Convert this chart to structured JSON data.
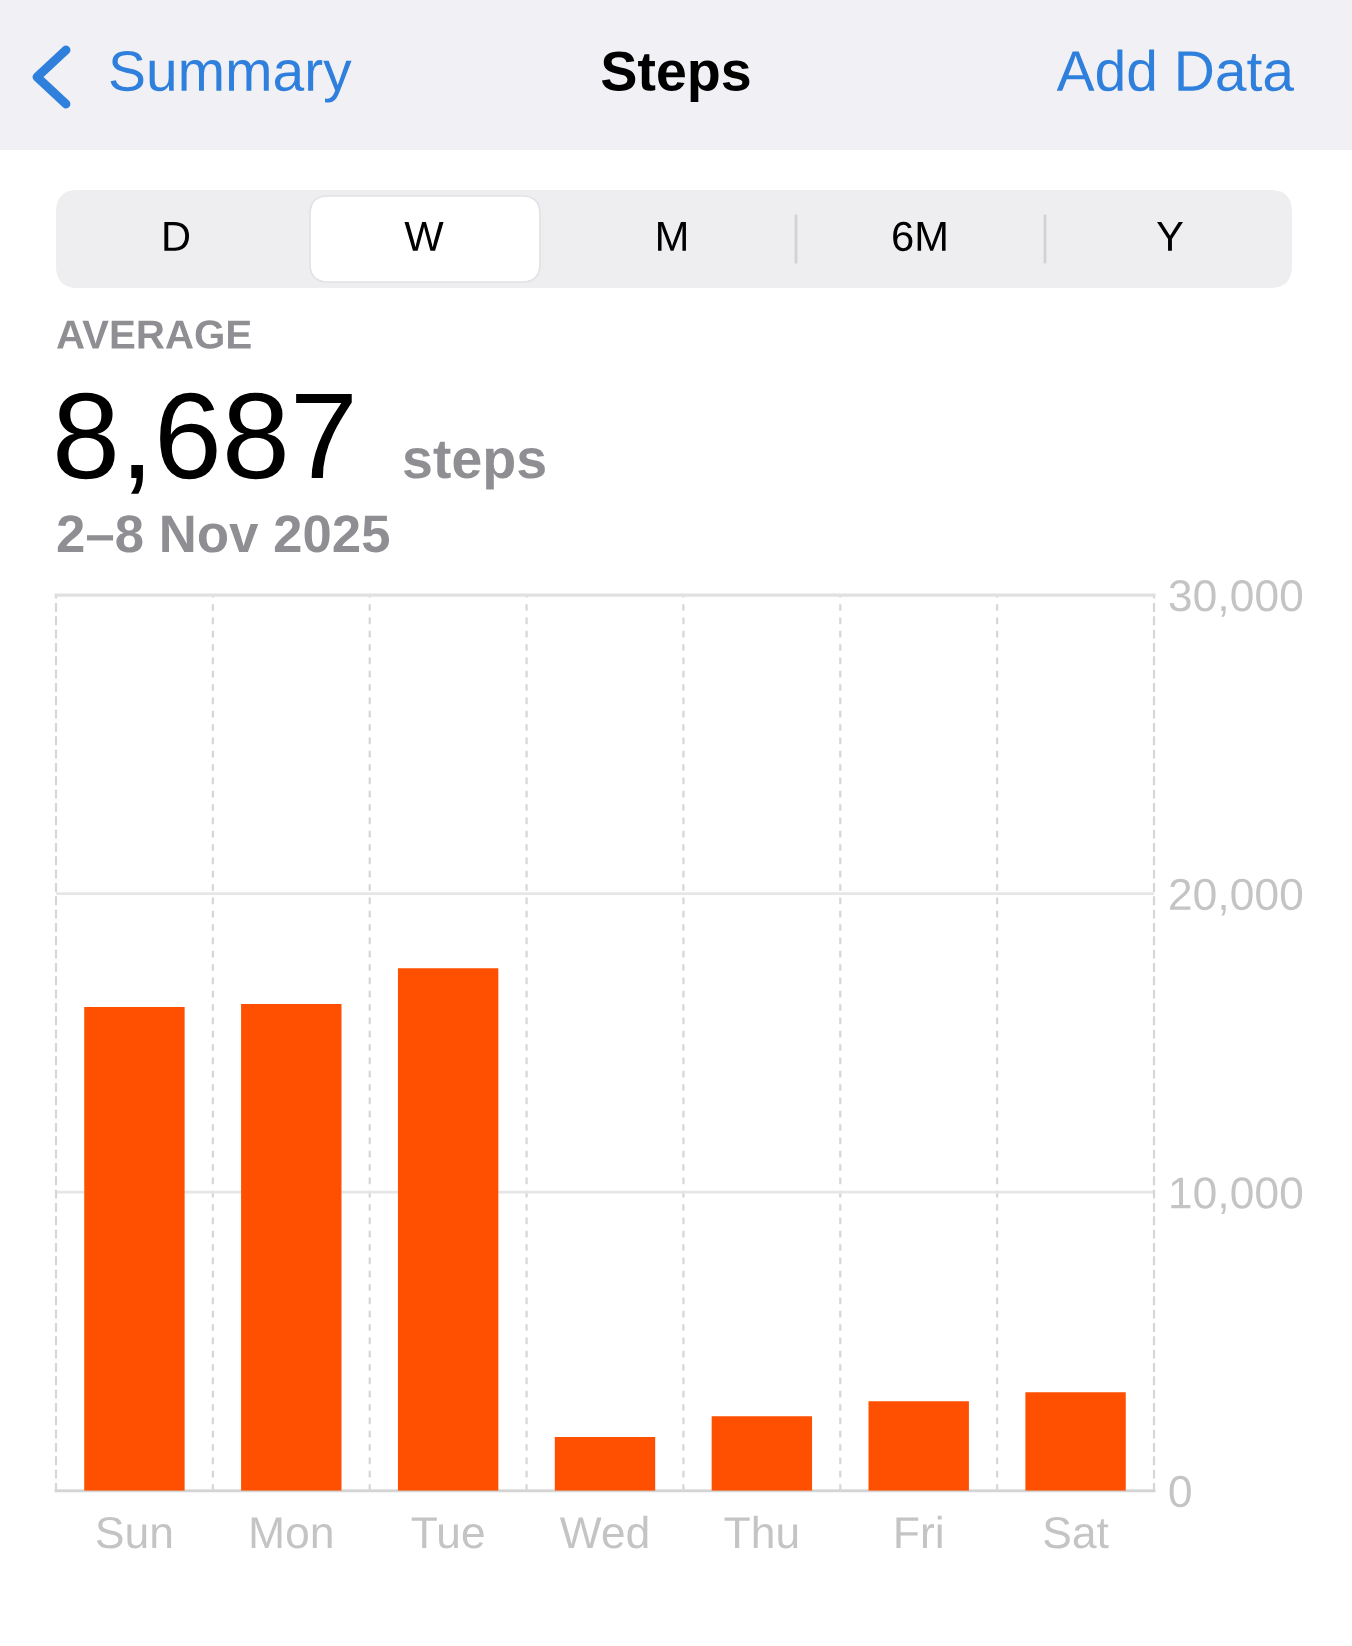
{
  "chart_data": {
    "type": "bar",
    "title": "Steps",
    "annotations": [
      "Summary",
      "Add Data",
      "D",
      "W",
      "M",
      "6M",
      "Y",
      "AVERAGE",
      "8,687",
      "steps",
      "2–8 Nov 2025"
    ],
    "categories": [
      "Sun",
      "Mon",
      "Tue",
      "Wed",
      "Thu",
      "Fri",
      "Sat"
    ],
    "values": [
      16200,
      16300,
      17500,
      1800,
      2500,
      3000,
      3300
    ],
    "color": "#ff4f00",
    "ylim": [
      0,
      30000
    ],
    "yticks": [
      0,
      {
        "value": 10000,
        "label": "10,000"
      },
      {
        "value": 20000,
        "label": "20,000"
      },
      {
        "value": 30000,
        "label": "30,000"
      }
    ],
    "grid": true
  }
}
